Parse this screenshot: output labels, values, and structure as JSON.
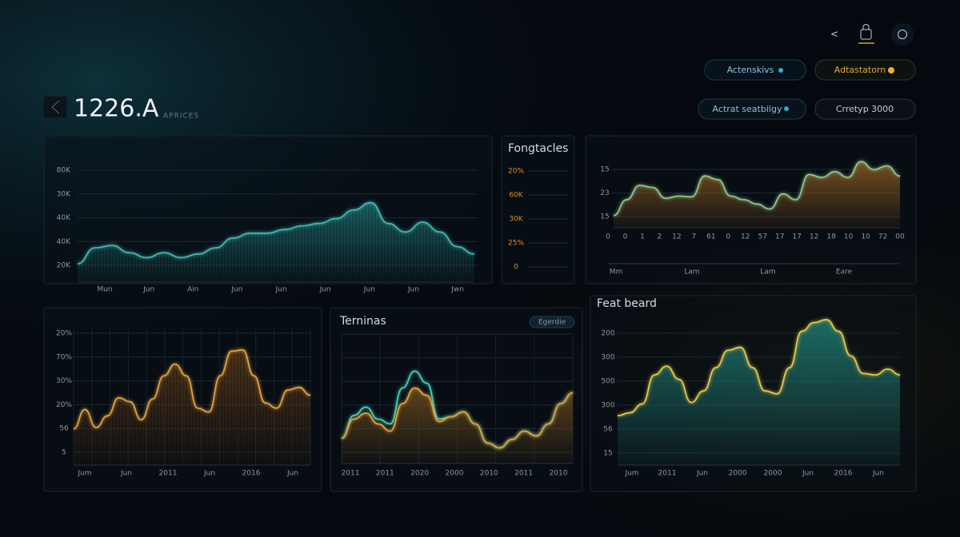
{
  "header": {
    "title": "1226.A",
    "subtitle": "APRICES",
    "nav": [
      "<"
    ],
    "buttons": [
      "Actenskivs",
      "Adtastatorn",
      "Actrat seatbiigy",
      "Crretyp 3000"
    ]
  },
  "chart_data": [
    {
      "type": "area",
      "color": "#3fb6ad",
      "fill": "#1f6f72",
      "stripes": true,
      "y_labels": [
        "80K",
        "30K",
        "40K",
        "40K",
        "20K"
      ],
      "x_labels": [
        "Mun",
        "Jun",
        "Ain",
        "Jun",
        "Jun",
        "Jun",
        "Jun",
        "Jun",
        "Jwn"
      ],
      "ylim": [
        0,
        100
      ],
      "values": [
        15,
        28,
        30,
        24,
        20,
        24,
        20,
        23,
        28,
        36,
        40,
        40,
        43,
        46,
        48,
        52,
        59,
        65,
        48,
        41,
        49,
        41,
        29,
        23
      ]
    },
    {
      "type": "line",
      "title": "Fongtacles",
      "label_color": "#d9902a",
      "y_labels": [
        "20%",
        "60K",
        "30K",
        "25%",
        "0"
      ]
    },
    {
      "type": "area",
      "color": "#8fc48a",
      "fill": "#8a5a22",
      "y_labels": [
        "15",
        "23",
        "15"
      ],
      "xtick_labels": [
        "0",
        "0",
        "1",
        "2",
        "12",
        "7",
        "61",
        "0",
        "12",
        "57",
        "17",
        "17",
        "12",
        "18",
        "10",
        "10",
        "72",
        "00"
      ],
      "x_labels": [
        "Mm",
        "Lam",
        "Lam",
        "Eare"
      ],
      "ylim": [
        0,
        100
      ],
      "values": [
        17,
        39,
        59,
        56,
        41,
        44,
        43,
        72,
        67,
        44,
        39,
        33,
        26,
        47,
        39,
        74,
        70,
        78,
        70,
        92,
        81,
        86,
        72
      ]
    },
    {
      "type": "line",
      "fill": "#5a3a1a",
      "stripes": true,
      "y_labels": [
        "20%",
        "70%",
        "30%",
        "20%",
        "56",
        "5"
      ],
      "x_labels": [
        "Jum",
        "Jun",
        "2011",
        "Jun",
        "2016",
        "Jun"
      ],
      "ylim": [
        0,
        100
      ],
      "series": [
        {
          "color": "#e0a040",
          "values": [
            28,
            43,
            29,
            38,
            52,
            49,
            35,
            51,
            69,
            78,
            69,
            44,
            41,
            69,
            88,
            89,
            69,
            48,
            44,
            58,
            60,
            54
          ]
        }
      ]
    },
    {
      "type": "line",
      "title": "Terninas",
      "badge": "Egerdie",
      "fill": "#6a4a1c",
      "x_labels": [
        "2011",
        "2011",
        "2020",
        "2000",
        "2010",
        "2011",
        "2010"
      ],
      "ylim": [
        0,
        100
      ],
      "series": [
        {
          "color": "#3fd0c0",
          "values": [
            21,
            40,
            47,
            37,
            33,
            63,
            77,
            67,
            37,
            39,
            43,
            33,
            17,
            13,
            20,
            27,
            23,
            33,
            50,
            59
          ]
        },
        {
          "color": "#e0a040",
          "values": [
            21,
            37,
            42,
            33,
            27,
            50,
            63,
            57,
            35,
            39,
            43,
            33,
            17,
            13,
            20,
            27,
            23,
            33,
            50,
            59
          ]
        }
      ]
    },
    {
      "type": "area",
      "title": "Feat beard",
      "color": "#e2c84a",
      "fill": "#1f7a72",
      "y_labels": [
        "200",
        "300",
        "500",
        "300",
        "56",
        "15"
      ],
      "x_labels": [
        "Jum",
        "2011",
        "Jun",
        "2000",
        "2000",
        "Jun",
        "2016",
        "Jun"
      ],
      "ylim": [
        0,
        100
      ],
      "values": [
        34,
        36,
        42,
        62,
        68,
        59,
        43,
        51,
        67,
        79,
        81,
        67,
        51,
        49,
        67,
        92,
        98,
        100,
        92,
        75,
        63,
        62,
        66,
        62
      ]
    }
  ]
}
